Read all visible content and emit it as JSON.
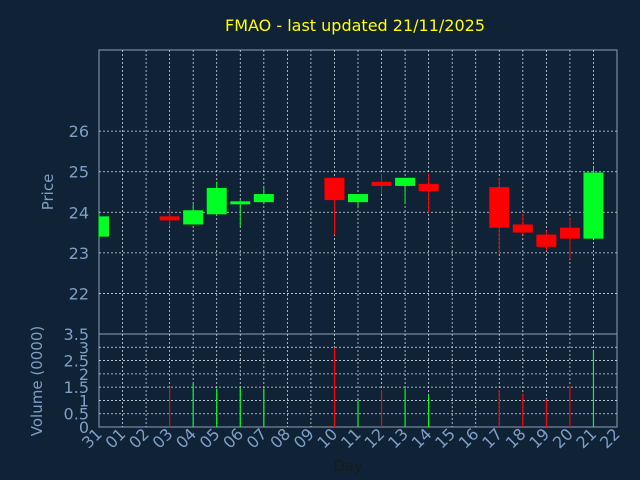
{
  "chart_data": [
    {
      "type": "candlestick",
      "title": "FMAO - last updated 21/11/2025",
      "ylabel": "Price",
      "ylim": [
        21.0,
        28.0
      ],
      "yticks": [
        22,
        23,
        24,
        25,
        26
      ],
      "x_categories": [
        "31",
        "01",
        "02",
        "03",
        "04",
        "05",
        "06",
        "07",
        "08",
        "09",
        "10",
        "11",
        "12",
        "13",
        "14",
        "15",
        "16",
        "17",
        "18",
        "19",
        "20",
        "21",
        "22"
      ],
      "grid": true,
      "up_color": "#00ff22",
      "down_color": "#ff0000",
      "candles": [
        {
          "x": "31",
          "open": 23.4,
          "close": 23.9,
          "high": 23.95,
          "low": 23.35
        },
        {
          "x": "03",
          "open": 23.9,
          "close": 23.8,
          "high": 24.1,
          "low": 23.65
        },
        {
          "x": "04",
          "open": 23.7,
          "close": 24.05,
          "high": 24.2,
          "low": 23.7
        },
        {
          "x": "05",
          "open": 23.95,
          "close": 24.6,
          "high": 24.75,
          "low": 23.95
        },
        {
          "x": "06",
          "open": 24.25,
          "close": 24.27,
          "high": 24.3,
          "low": 23.65
        },
        {
          "x": "07",
          "open": 24.25,
          "close": 24.45,
          "high": 24.6,
          "low": 24.2
        },
        {
          "x": "10",
          "open": 24.85,
          "close": 24.3,
          "high": 24.85,
          "low": 23.45
        },
        {
          "x": "11",
          "open": 24.25,
          "close": 24.45,
          "high": 24.45,
          "low": 24.1
        },
        {
          "x": "12",
          "open": 24.75,
          "close": 24.65,
          "high": 24.95,
          "low": 24.45
        },
        {
          "x": "13",
          "open": 24.65,
          "close": 24.85,
          "high": 24.85,
          "low": 24.2
        },
        {
          "x": "14",
          "open": 24.7,
          "close": 24.52,
          "high": 24.95,
          "low": 24.0
        },
        {
          "x": "17",
          "open": 24.62,
          "close": 23.62,
          "high": 24.85,
          "low": 22.98
        },
        {
          "x": "18",
          "open": 23.7,
          "close": 23.5,
          "high": 23.95,
          "low": 23.45
        },
        {
          "x": "19",
          "open": 23.45,
          "close": 23.15,
          "high": 23.55,
          "low": 23.05
        },
        {
          "x": "20",
          "open": 23.62,
          "close": 23.35,
          "high": 23.85,
          "low": 22.85
        },
        {
          "x": "21",
          "open": 23.35,
          "close": 24.98,
          "high": 25.1,
          "low": 23.35
        }
      ]
    },
    {
      "type": "bar",
      "ylabel": "Volume (0000)",
      "xlabel": "Day",
      "ylim": [
        0,
        3.5
      ],
      "yticks": [
        0,
        0.5,
        1,
        1.5,
        2,
        2.5,
        3,
        3.5
      ],
      "categories": [
        "31",
        "01",
        "02",
        "03",
        "04",
        "05",
        "06",
        "07",
        "08",
        "09",
        "10",
        "11",
        "12",
        "13",
        "14",
        "15",
        "16",
        "17",
        "18",
        "19",
        "20",
        "21",
        "22"
      ],
      "grid": true,
      "bars": [
        {
          "x": "03",
          "value": 1.5,
          "color": "#ff0000"
        },
        {
          "x": "04",
          "value": 1.65,
          "color": "#00ff22"
        },
        {
          "x": "05",
          "value": 1.45,
          "color": "#00ff22"
        },
        {
          "x": "06",
          "value": 1.5,
          "color": "#00ff22"
        },
        {
          "x": "07",
          "value": 1.45,
          "color": "#00ff22"
        },
        {
          "x": "10",
          "value": 3.0,
          "color": "#ff0000"
        },
        {
          "x": "11",
          "value": 1.0,
          "color": "#00ff22"
        },
        {
          "x": "12",
          "value": 1.4,
          "color": "#ff0000"
        },
        {
          "x": "13",
          "value": 1.45,
          "color": "#00ff22"
        },
        {
          "x": "14",
          "value": 1.2,
          "color": "#00ff22"
        },
        {
          "x": "17",
          "value": 1.4,
          "color": "#ff0000"
        },
        {
          "x": "18",
          "value": 1.25,
          "color": "#ff0000"
        },
        {
          "x": "19",
          "value": 1.05,
          "color": "#ff0000"
        },
        {
          "x": "20",
          "value": 1.55,
          "color": "#ff0000"
        },
        {
          "x": "21",
          "value": 2.9,
          "color": "#00ff22"
        }
      ]
    }
  ]
}
